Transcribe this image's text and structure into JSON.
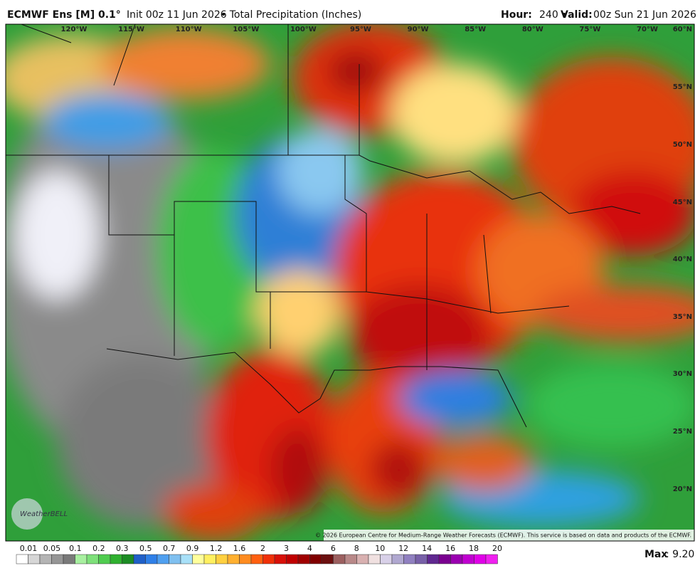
{
  "header": {
    "model": "ECMWF Ens [M] 0.1°",
    "init": "Init 00z 11 Jun 2026",
    "product": "• Total Precipitation (Inches)",
    "hour_label": "Hour:",
    "hour": "240 •",
    "valid_label": "Valid:",
    "valid": "00z Sun 21 Jun 2026"
  },
  "map": {
    "longitudes": [
      "120°W",
      "115°W",
      "110°W",
      "105°W",
      "100°W",
      "95°W",
      "90°W",
      "85°W",
      "80°W",
      "75°W",
      "70°W"
    ],
    "latitudes": [
      "60°N",
      "55°N",
      "50°N",
      "45°N",
      "40°N",
      "35°N",
      "30°N",
      "25°N",
      "20°N"
    ],
    "logo": "WeatherBELL",
    "copyright": "© 2026 European Centre for Medium-Range Weather Forecasts (ECMWF). This service is based on data and products of the ECMWF."
  },
  "colorbar": {
    "labels": [
      "0.01",
      "0.05",
      "0.1",
      "0.2",
      "0.3",
      "0.5",
      "0.7",
      "0.9",
      "1.2",
      "1.6",
      "2",
      "3",
      "4",
      "6",
      "8",
      "10",
      "12",
      "14",
      "16",
      "18",
      "20"
    ],
    "max_label": "Max",
    "max": ": 9.20"
  }
}
